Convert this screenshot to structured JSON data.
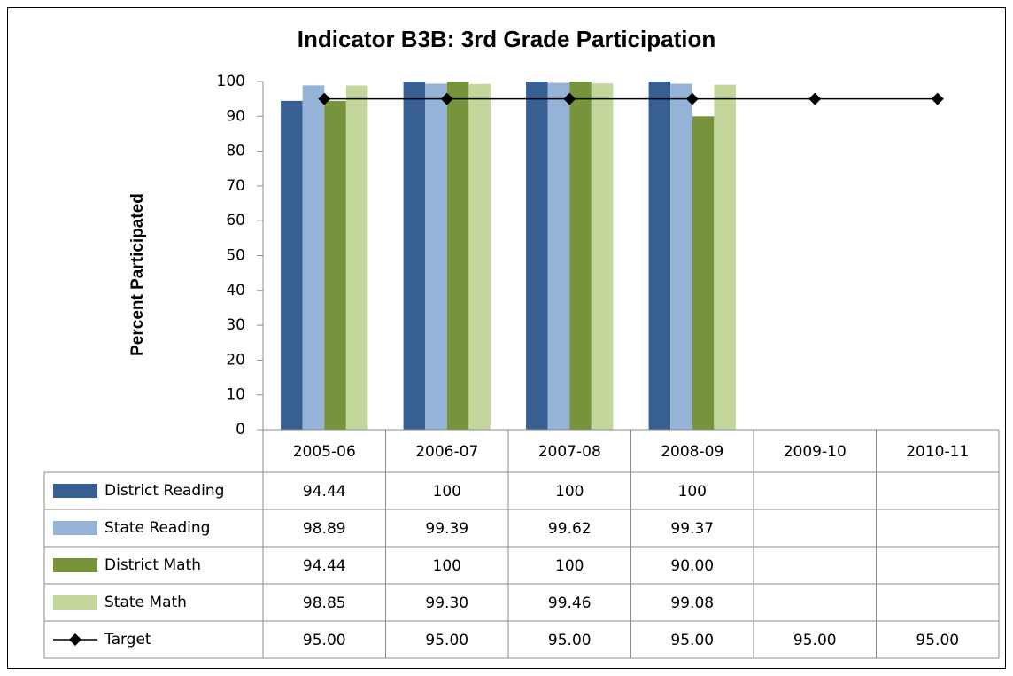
{
  "chart_data": {
    "type": "bar",
    "title": "Indicator B3B: 3rd Grade Participation",
    "y_label": "Percent  Participated",
    "categories": [
      "2005-06",
      "2006-07",
      "2007-08",
      "2008-09",
      "2009-10",
      "2010-11"
    ],
    "ylim": [
      0,
      100
    ],
    "yticks": [
      0,
      10,
      20,
      30,
      40,
      50,
      60,
      70,
      80,
      90,
      100
    ],
    "series": [
      {
        "name": "District Reading",
        "color": "#375f92",
        "type": "bar",
        "values": [
          94.44,
          100,
          100,
          100,
          null,
          null
        ]
      },
      {
        "name": "State Reading",
        "color": "#95b3d7",
        "type": "bar",
        "values": [
          98.89,
          99.39,
          99.62,
          99.37,
          null,
          null
        ]
      },
      {
        "name": "District Math",
        "color": "#77933c",
        "type": "bar",
        "values": [
          94.44,
          100,
          100,
          90,
          null,
          null
        ],
        "value_labels": [
          "94.44",
          "100",
          "100",
          "90.00",
          null,
          null
        ]
      },
      {
        "name": "State Math",
        "color": "#c3d69b",
        "type": "bar",
        "values": [
          98.85,
          99.3,
          99.46,
          99.08,
          null,
          null
        ],
        "value_labels": [
          "98.85",
          "99.30",
          "99.46",
          "99.08",
          null,
          null
        ]
      },
      {
        "name": "Target",
        "color": "#000000",
        "type": "line",
        "values": [
          95,
          95,
          95,
          95,
          95,
          95
        ],
        "value_labels": [
          "95.00",
          "95.00",
          "95.00",
          "95.00",
          "95.00",
          "95.00"
        ]
      }
    ]
  }
}
